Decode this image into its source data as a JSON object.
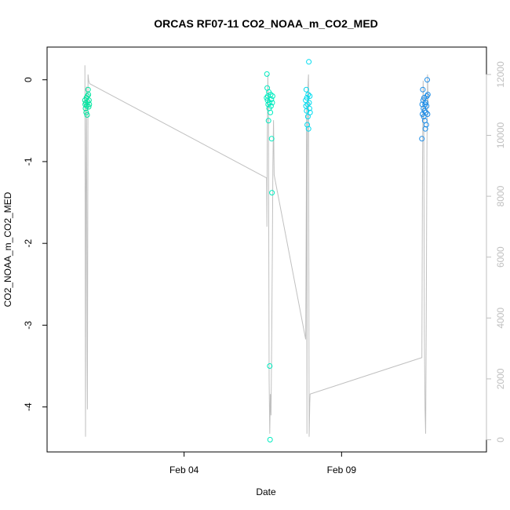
{
  "chart_data": {
    "type": "scatter",
    "title": "ORCAS RF07-11 CO2_NOAA_m_CO2_MED",
    "xlabel": "Date",
    "ylabel": "CO2_NOAA_m_CO2_MED",
    "x_ticks": [
      {
        "label": "Feb 04",
        "day": 4
      },
      {
        "label": "Feb 09",
        "day": 9
      }
    ],
    "y_ticks": [
      0,
      -1,
      -2,
      -3,
      -4
    ],
    "y2_ticks": [
      0,
      2000,
      4000,
      6000,
      8000,
      10000,
      12000
    ],
    "xlim": [
      -0.35,
      13.6
    ],
    "ylim": [
      -4.55,
      0.4
    ],
    "y2lim": [
      -400,
      12900
    ],
    "series_colors": [
      "#00e5a0",
      "#00ecc0",
      "#00dcf0",
      "#1a8ce8"
    ],
    "line_color": "#c0c0c0",
    "altitude_trace": [
      [
        0.85,
        12300
      ],
      [
        0.86,
        6000
      ],
      [
        0.87,
        100
      ],
      [
        0.88,
        8000
      ],
      [
        0.9,
        11600
      ],
      [
        0.92,
        3000
      ],
      [
        0.93,
        1000
      ],
      [
        0.95,
        12000
      ],
      [
        0.97,
        11800
      ],
      [
        1.0,
        11700
      ],
      [
        6.62,
        8600
      ],
      [
        6.63,
        7000
      ],
      [
        6.64,
        9800
      ],
      [
        6.66,
        12000
      ],
      [
        6.68,
        10500
      ],
      [
        6.7,
        2000
      ],
      [
        6.72,
        200
      ],
      [
        6.74,
        1500
      ],
      [
        6.76,
        800
      ],
      [
        6.78,
        3000
      ],
      [
        6.8,
        5800
      ],
      [
        6.82,
        9000
      ],
      [
        6.84,
        10500
      ],
      [
        6.86,
        8700
      ],
      [
        7.86,
        3300
      ],
      [
        7.88,
        8000
      ],
      [
        7.89,
        11000
      ],
      [
        7.9,
        200
      ],
      [
        7.91,
        8800
      ],
      [
        7.93,
        11600
      ],
      [
        7.95,
        12000
      ],
      [
        7.97,
        100
      ],
      [
        7.99,
        1200
      ],
      [
        8.0,
        1500
      ],
      [
        11.55,
        2700
      ],
      [
        11.57,
        9000
      ],
      [
        11.59,
        11800
      ],
      [
        11.61,
        10500
      ],
      [
        11.63,
        3500
      ],
      [
        11.65,
        1000
      ],
      [
        11.67,
        200
      ],
      [
        11.69,
        4000
      ],
      [
        11.71,
        9500
      ],
      [
        11.73,
        12000
      ],
      [
        11.75,
        11000
      ]
    ],
    "co2_points": [
      {
        "x": 0.85,
        "y": -0.25
      },
      {
        "x": 0.86,
        "y": -0.3
      },
      {
        "x": 0.87,
        "y": -0.35
      },
      {
        "x": 0.88,
        "y": -0.28
      },
      {
        "x": 0.89,
        "y": -0.4
      },
      {
        "x": 0.9,
        "y": -0.22
      },
      {
        "x": 0.91,
        "y": -0.32
      },
      {
        "x": 0.92,
        "y": -0.43
      },
      {
        "x": 0.93,
        "y": -0.2
      },
      {
        "x": 0.94,
        "y": -0.27
      },
      {
        "x": 0.95,
        "y": -0.12
      },
      {
        "x": 0.96,
        "y": -0.18
      },
      {
        "x": 0.97,
        "y": -0.33
      },
      {
        "x": 0.98,
        "y": -0.25
      },
      {
        "x": 0.99,
        "y": -0.3
      },
      {
        "x": 6.62,
        "y": -0.22
      },
      {
        "x": 6.63,
        "y": 0.07
      },
      {
        "x": 6.64,
        "y": -0.1
      },
      {
        "x": 6.65,
        "y": -0.25
      },
      {
        "x": 6.66,
        "y": -0.2
      },
      {
        "x": 6.67,
        "y": -0.3
      },
      {
        "x": 6.68,
        "y": -0.5
      },
      {
        "x": 6.69,
        "y": -0.15
      },
      {
        "x": 6.7,
        "y": -0.35
      },
      {
        "x": 6.71,
        "y": -0.28
      },
      {
        "x": 6.72,
        "y": -3.5
      },
      {
        "x": 6.73,
        "y": -4.4
      },
      {
        "x": 6.74,
        "y": -0.4
      },
      {
        "x": 6.75,
        "y": -0.18
      },
      {
        "x": 6.76,
        "y": -0.32
      },
      {
        "x": 6.77,
        "y": -0.24
      },
      {
        "x": 6.78,
        "y": -0.72
      },
      {
        "x": 6.79,
        "y": -1.38
      },
      {
        "x": 6.8,
        "y": -0.28
      },
      {
        "x": 6.81,
        "y": -0.2
      },
      {
        "x": 7.86,
        "y": -0.25
      },
      {
        "x": 7.87,
        "y": -0.32
      },
      {
        "x": 7.88,
        "y": -0.12
      },
      {
        "x": 7.89,
        "y": -0.38
      },
      {
        "x": 7.9,
        "y": -0.22
      },
      {
        "x": 7.91,
        "y": -0.55
      },
      {
        "x": 7.92,
        "y": -0.3
      },
      {
        "x": 7.93,
        "y": -0.45
      },
      {
        "x": 7.94,
        "y": -0.18
      },
      {
        "x": 7.95,
        "y": -0.6
      },
      {
        "x": 7.96,
        "y": 0.22
      },
      {
        "x": 7.97,
        "y": -0.28
      },
      {
        "x": 7.98,
        "y": -0.35
      },
      {
        "x": 7.99,
        "y": -0.2
      },
      {
        "x": 8.0,
        "y": -0.4
      },
      {
        "x": 11.55,
        "y": -0.72
      },
      {
        "x": 11.56,
        "y": -0.3
      },
      {
        "x": 11.57,
        "y": -0.42
      },
      {
        "x": 11.58,
        "y": -0.12
      },
      {
        "x": 11.59,
        "y": -0.25
      },
      {
        "x": 11.6,
        "y": -0.35
      },
      {
        "x": 11.61,
        "y": -0.45
      },
      {
        "x": 11.62,
        "y": -0.22
      },
      {
        "x": 11.63,
        "y": -0.38
      },
      {
        "x": 11.64,
        "y": -0.5
      },
      {
        "x": 11.65,
        "y": -0.3
      },
      {
        "x": 11.66,
        "y": -0.6
      },
      {
        "x": 11.67,
        "y": -0.28
      },
      {
        "x": 11.68,
        "y": -0.4
      },
      {
        "x": 11.69,
        "y": -0.55
      },
      {
        "x": 11.7,
        "y": -0.32
      },
      {
        "x": 11.71,
        "y": -0.2
      },
      {
        "x": 11.72,
        "y": 0.0
      },
      {
        "x": 11.73,
        "y": -0.42
      },
      {
        "x": 11.74,
        "y": -0.18
      }
    ]
  }
}
